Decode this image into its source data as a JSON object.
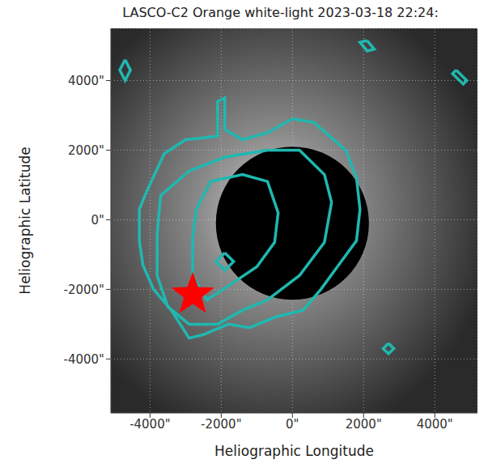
{
  "chart_data": {
    "type": "contour",
    "title": "LASCO-C2 Orange white-light 2023-03-18 22:24:",
    "x_label": "Heliographic Longitude",
    "y_label": "Heliographic Latitude",
    "xlim": [
      -5100,
      5200
    ],
    "ylim": [
      -5550,
      5500
    ],
    "xticks": [
      {
        "value": -4000,
        "label": "-4000\""
      },
      {
        "value": -2000,
        "label": "-2000\""
      },
      {
        "value": 0,
        "label": "0\""
      },
      {
        "value": 2000,
        "label": "2000\""
      },
      {
        "value": 4000,
        "label": "4000\""
      }
    ],
    "yticks": [
      {
        "value": -4000,
        "label": "-4000\""
      },
      {
        "value": -2000,
        "label": "-2000\""
      },
      {
        "value": 0,
        "label": "0\""
      },
      {
        "value": 2000,
        "label": "2000\""
      },
      {
        "value": 4000,
        "label": "4000\""
      }
    ],
    "grid": true,
    "color": "#1fb8b0",
    "line_style": "solid",
    "occulter": {
      "x": 0,
      "y": -100,
      "radius": 2150,
      "color": "#000000"
    },
    "contours": [
      {
        "x": [
          -4300,
          -4300,
          -4100,
          -3600,
          -3000,
          -2100,
          -2100,
          -1900,
          -1900,
          -1400,
          -700,
          0,
          600,
          1500,
          1800,
          1900,
          1800,
          1300,
          800,
          300,
          -500,
          -1200,
          -1800,
          -2500,
          -2900,
          -3400,
          -3900,
          -4200
        ],
        "y": [
          -600,
          300,
          800,
          1900,
          2300,
          2400,
          3400,
          3500,
          2600,
          2300,
          2500,
          2900,
          2800,
          2000,
          1200,
          300,
          -600,
          -1300,
          -2000,
          -2600,
          -2800,
          -3100,
          -3000,
          -3300,
          -3400,
          -2600,
          -2000,
          -1300
        ]
      },
      {
        "x": [
          -3800,
          -3700,
          -2900,
          -1900,
          -700,
          200,
          900,
          1100,
          900,
          200,
          -700,
          -1400,
          -2100,
          -2900,
          -3500,
          -3800
        ],
        "y": [
          -400,
          700,
          1400,
          1800,
          2000,
          2000,
          1300,
          500,
          -650,
          -1600,
          -2300,
          -2600,
          -3000,
          -3000,
          -2500,
          -1600
        ]
      },
      {
        "x": [
          -2700,
          -2300,
          -1400,
          -700,
          -400,
          -500,
          -1000,
          -1800,
          -2400,
          -2800,
          -2800
        ],
        "y": [
          300,
          1100,
          1300,
          1100,
          200,
          -650,
          -1350,
          -1900,
          -2300,
          -1600,
          -500
        ]
      },
      {
        "x": [
          -1900,
          -1650,
          -1900,
          -2150
        ],
        "y": [
          -950,
          -1200,
          -1450,
          -1200
        ]
      },
      {
        "x": [
          -4700,
          -4550,
          -4700,
          -4850
        ],
        "y": [
          4600,
          4300,
          4000,
          4300
        ]
      },
      {
        "x": [
          2100,
          2300,
          2100,
          1900
        ],
        "y": [
          5150,
          4900,
          4850,
          5100
        ]
      },
      {
        "x": [
          4600,
          4900,
          4800,
          4500
        ],
        "y": [
          4300,
          4000,
          3900,
          4200
        ]
      },
      {
        "x": [
          2700,
          2850,
          2700,
          2550
        ],
        "y": [
          -3550,
          -3700,
          -3850,
          -3700
        ]
      }
    ],
    "markers": [
      {
        "x": -2800,
        "y": -2150,
        "marker": "star",
        "color": "#ff0000"
      }
    ]
  }
}
